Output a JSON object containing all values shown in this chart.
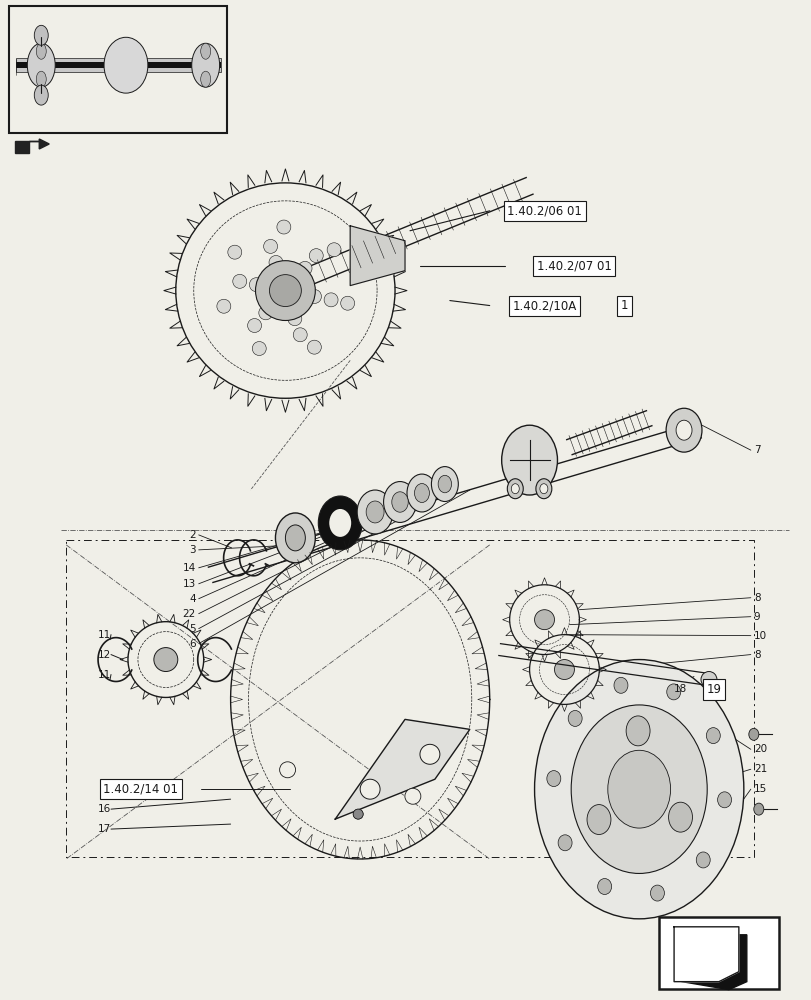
{
  "bg_color": "#f0efe8",
  "line_color": "#1a1a1a",
  "box_color": "#ffffff",
  "labels": {
    "ref1": "1.40.2/06 01",
    "ref2": "1.40.2/07 01",
    "ref3": "1.40.2/10A",
    "ref4": "1.40.2/14 01",
    "num1": "1"
  },
  "part_numbers": [
    "2",
    "3",
    "14",
    "13",
    "4",
    "22",
    "5",
    "6",
    "7",
    "8",
    "9",
    "10",
    "8",
    "11",
    "12",
    "11",
    "15",
    "16",
    "17",
    "18",
    "19",
    "20",
    "21",
    "22"
  ]
}
